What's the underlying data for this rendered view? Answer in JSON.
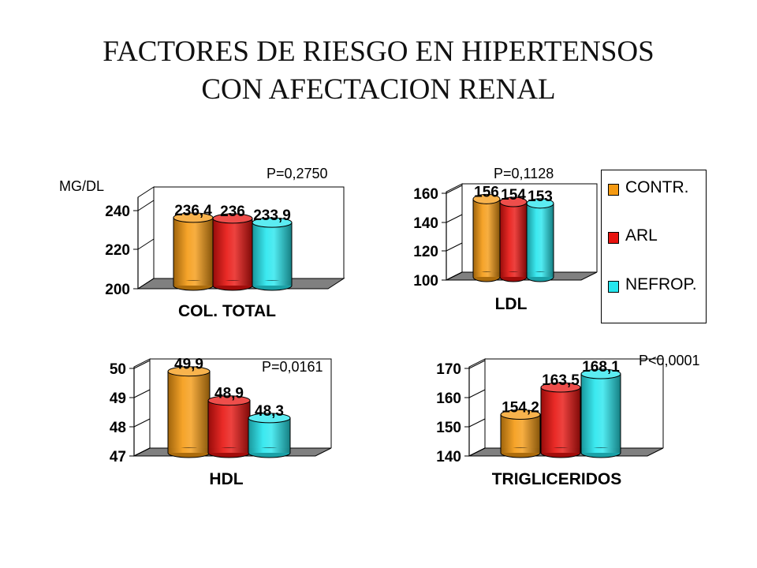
{
  "title": {
    "line1": "FACTORES DE RIESGO EN HIPERTENSOS",
    "line2": "CON AFECTACION RENAL"
  },
  "annotations": {
    "unit": "MG/DL"
  },
  "legend": [
    {
      "label": "CONTR.",
      "color": "#f59a12"
    },
    {
      "label": "ARL",
      "color": "#e8130f"
    },
    {
      "label": "NEFROP.",
      "color": "#26e6ee"
    }
  ],
  "chart_data": [
    {
      "type": "bar",
      "title": "",
      "xlabel": "COL. TOTAL",
      "ylabel": "MG/DL",
      "pvalue": "P=0,2750",
      "ylim": [
        200,
        250
      ],
      "yticks": [
        "200",
        "220",
        "240"
      ],
      "series": [
        {
          "name": "CONTR.",
          "value": 236.4,
          "label": "236,4"
        },
        {
          "name": "ARL",
          "value": 236,
          "label": "236"
        },
        {
          "name": "NEFROP.",
          "value": 233.9,
          "label": "233,9"
        }
      ],
      "grid": false,
      "legend": "right"
    },
    {
      "type": "bar",
      "title": "",
      "xlabel": "LDL",
      "ylabel": "",
      "pvalue": "P=0,1128",
      "ylim": [
        100,
        160
      ],
      "yticks": [
        "100",
        "120",
        "140",
        "160"
      ],
      "series": [
        {
          "name": "CONTR.",
          "value": 156,
          "label": "156"
        },
        {
          "name": "ARL",
          "value": 154,
          "label": "154"
        },
        {
          "name": "NEFROP.",
          "value": 153,
          "label": "153"
        }
      ],
      "grid": false,
      "legend": "right"
    },
    {
      "type": "bar",
      "title": "",
      "xlabel": "HDL",
      "ylabel": "",
      "pvalue": "P=0,0161",
      "ylim": [
        47,
        50
      ],
      "yticks": [
        "47",
        "48",
        "49",
        "50"
      ],
      "series": [
        {
          "name": "CONTR.",
          "value": 49.9,
          "label": "49,9"
        },
        {
          "name": "ARL",
          "value": 48.9,
          "label": "48,9"
        },
        {
          "name": "NEFROP.",
          "value": 48.3,
          "label": "48,3"
        }
      ],
      "grid": false,
      "legend": "right"
    },
    {
      "type": "bar",
      "title": "",
      "xlabel": "TRIGLICERIDOS",
      "ylabel": "",
      "pvalue": "P<0,0001",
      "ylim": [
        140,
        170
      ],
      "yticks": [
        "140",
        "150",
        "160",
        "170"
      ],
      "series": [
        {
          "name": "CONTR.",
          "value": 154.2,
          "label": "154,2"
        },
        {
          "name": "ARL",
          "value": 163.5,
          "label": "163,5"
        },
        {
          "name": "NEFROP.",
          "value": 168.1,
          "label": "168,1"
        }
      ],
      "grid": false,
      "legend": "right"
    }
  ]
}
